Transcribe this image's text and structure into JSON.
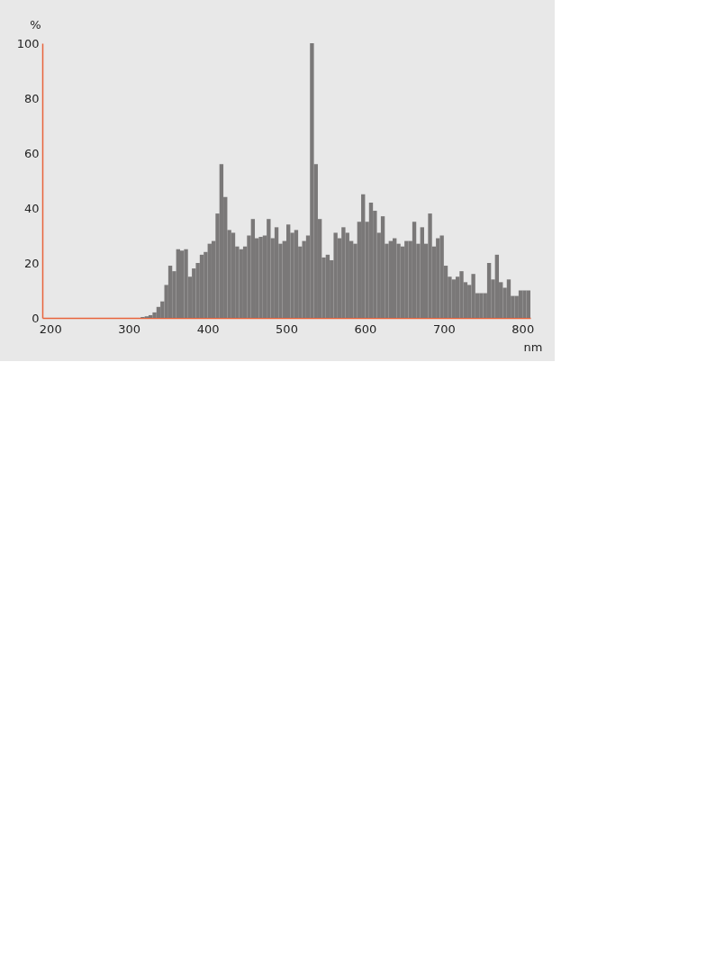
{
  "chart_data": {
    "type": "histogram",
    "xlabel": "nm",
    "ylabel": "%",
    "color": "#7a7878",
    "bins": [
      315,
      320,
      325,
      330,
      335,
      340,
      345,
      350,
      355,
      360,
      365,
      370,
      375,
      380,
      385,
      390,
      395,
      400,
      405,
      410,
      415,
      420,
      425,
      430,
      435,
      440,
      445,
      450,
      455,
      460,
      465,
      470,
      475,
      480,
      485,
      490,
      495,
      500,
      505,
      510,
      515,
      520,
      525,
      530,
      535,
      540,
      545,
      550,
      555,
      560,
      565,
      570,
      575,
      580,
      585,
      590,
      595,
      600,
      605,
      610,
      615,
      620,
      625,
      630,
      635,
      640,
      645,
      650,
      655,
      660,
      665,
      670,
      675,
      680,
      685,
      690,
      695,
      700,
      705,
      710,
      715,
      720,
      725,
      730,
      735,
      740,
      745,
      750,
      755,
      760,
      765,
      770,
      775,
      780,
      785,
      790,
      795,
      800,
      805,
      810
    ],
    "values": [
      0.3,
      0.6,
      1,
      2,
      4,
      6,
      12,
      19,
      17,
      25,
      24.5,
      25,
      15,
      18,
      20,
      23,
      24,
      27,
      28,
      38,
      56,
      44,
      32,
      31,
      26,
      25,
      26,
      30,
      36,
      29,
      29.5,
      30,
      36,
      29,
      33,
      27,
      28,
      34,
      31,
      32,
      26,
      28,
      30,
      100,
      56,
      36,
      22,
      23,
      21,
      31,
      29,
      33,
      31,
      28,
      27,
      35,
      45,
      35,
      42,
      39,
      31,
      37,
      27,
      28,
      29,
      27,
      26,
      28,
      28,
      35,
      27,
      33,
      27,
      38,
      26,
      29,
      30,
      19,
      15,
      14,
      15,
      17,
      13,
      12,
      16,
      9,
      9,
      9,
      20,
      14,
      23,
      13,
      11,
      14,
      8,
      8,
      10,
      10,
      10
    ],
    "xlim": [
      190,
      810
    ],
    "xticks": [
      200,
      300,
      400,
      500,
      600,
      700,
      800
    ],
    "ylim": [
      0,
      100
    ],
    "yticks": [
      0,
      20,
      40,
      60,
      80,
      100
    ],
    "grid": false
  }
}
